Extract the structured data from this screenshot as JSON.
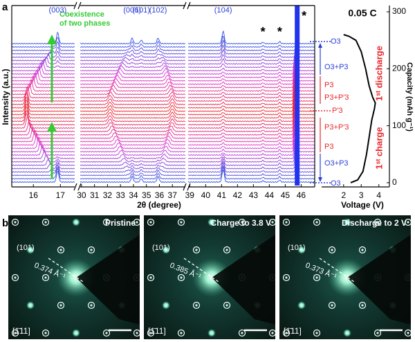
{
  "panel_a": {
    "label": "a",
    "y_label": "Intensity (a.u.)",
    "x_label": "2θ (degree)",
    "rate": "0.05 C",
    "annotation": [
      "Coexistence",
      "of two phases"
    ],
    "segments": [
      {
        "xlim": [
          15.2,
          17.53
        ],
        "xticks": [
          16,
          17
        ]
      },
      {
        "xlim": [
          29.9,
          38.0
        ],
        "xticks": [
          30,
          31,
          32,
          33,
          34,
          35,
          36,
          37
        ]
      },
      {
        "xlim": [
          38.9,
          46.85
        ],
        "xticks": [
          39,
          40,
          41,
          42,
          43,
          44,
          45,
          46
        ]
      }
    ],
    "peak_labels": [
      {
        "text": "(003)",
        "x": 16.9
      },
      {
        "text": "(006)",
        "x": 33.9
      },
      {
        "text": "(101)",
        "x": 34.6
      },
      {
        "text": "(102)",
        "x": 35.9
      },
      {
        "text": "(104)",
        "x": 41.1
      }
    ],
    "markers": [
      {
        "text": "*",
        "x": 43.6
      },
      {
        "text": "*",
        "x": 44.65
      },
      {
        "text": "*",
        "x": 45.75
      }
    ],
    "phase_labels": [
      {
        "text": "O3",
        "color": "#2b3fd8"
      },
      {
        "text": "O3+P3",
        "color": "#2b3fd8"
      },
      {
        "text": "P3",
        "color": "#e8262b"
      },
      {
        "text": "P3+P′3",
        "color": "#e8262b"
      },
      {
        "text": "P′3",
        "color": "#e8262b"
      },
      {
        "text": "P3+P′3",
        "color": "#e8262b"
      },
      {
        "text": "P3",
        "color": "#e8262b"
      },
      {
        "text": "O3+P3",
        "color": "#2b3fd8"
      },
      {
        "text": "O3",
        "color": "#2b3fd8"
      }
    ],
    "discharge_label": "1ˢᵗ discharge",
    "charge_label": "1ˢᵗ charge",
    "voltage_axis": {
      "label": "Voltage (V)",
      "xlim": [
        0.75,
        4.6
      ],
      "xticks": [
        2,
        3,
        4
      ]
    },
    "capacity_axis": {
      "label": "Capacity (mAh g⁻¹)",
      "ylim": [
        -7.4,
        311
      ],
      "yticks": [
        0,
        100,
        200,
        300
      ]
    },
    "voltage_profile": {
      "capacity": [
        0,
        5,
        20,
        50,
        80,
        110,
        130,
        140,
        150,
        170,
        200,
        230,
        250,
        257,
        260
      ],
      "voltage": [
        2.4,
        2.8,
        3.1,
        3.3,
        3.45,
        3.6,
        3.75,
        3.8,
        3.65,
        3.45,
        3.25,
        3.0,
        2.7,
        2.3,
        2.0
      ]
    }
  },
  "panel_b": {
    "label": "b",
    "images": [
      {
        "title": "Pristine",
        "spot": "(101)",
        "d_spacing": "0.374 Å⁻¹",
        "zone_axis": "[1̄11]"
      },
      {
        "title": "Charge to 3.8 V",
        "spot": "(101)",
        "d_spacing": "0.385 Å⁻¹",
        "zone_axis": "[1̄11]"
      },
      {
        "title": "Discharge to 2 V",
        "spot": "(101)",
        "d_spacing": "0.373 Å⁻¹",
        "zone_axis": "[1̄11]"
      }
    ]
  }
}
